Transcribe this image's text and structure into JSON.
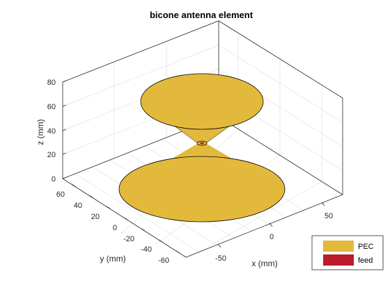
{
  "figure": {
    "title": "bicone antenna element",
    "xlabel": "x (mm)",
    "ylabel": "y (mm)",
    "zlabel": "z (mm)",
    "x_ticks": [
      "-50",
      "0",
      "50"
    ],
    "y_ticks": [
      "60",
      "40",
      "20",
      "0",
      "-20",
      "-40",
      "-60"
    ],
    "z_ticks": [
      "80",
      "60",
      "40",
      "20",
      "0"
    ],
    "legend": [
      {
        "label": "PEC",
        "color": "#e3b93c"
      },
      {
        "label": "feed",
        "color": "#bb1b2d"
      }
    ],
    "colors": {
      "metal": "#e3b93c",
      "feed": "#bb1b2d"
    }
  }
}
